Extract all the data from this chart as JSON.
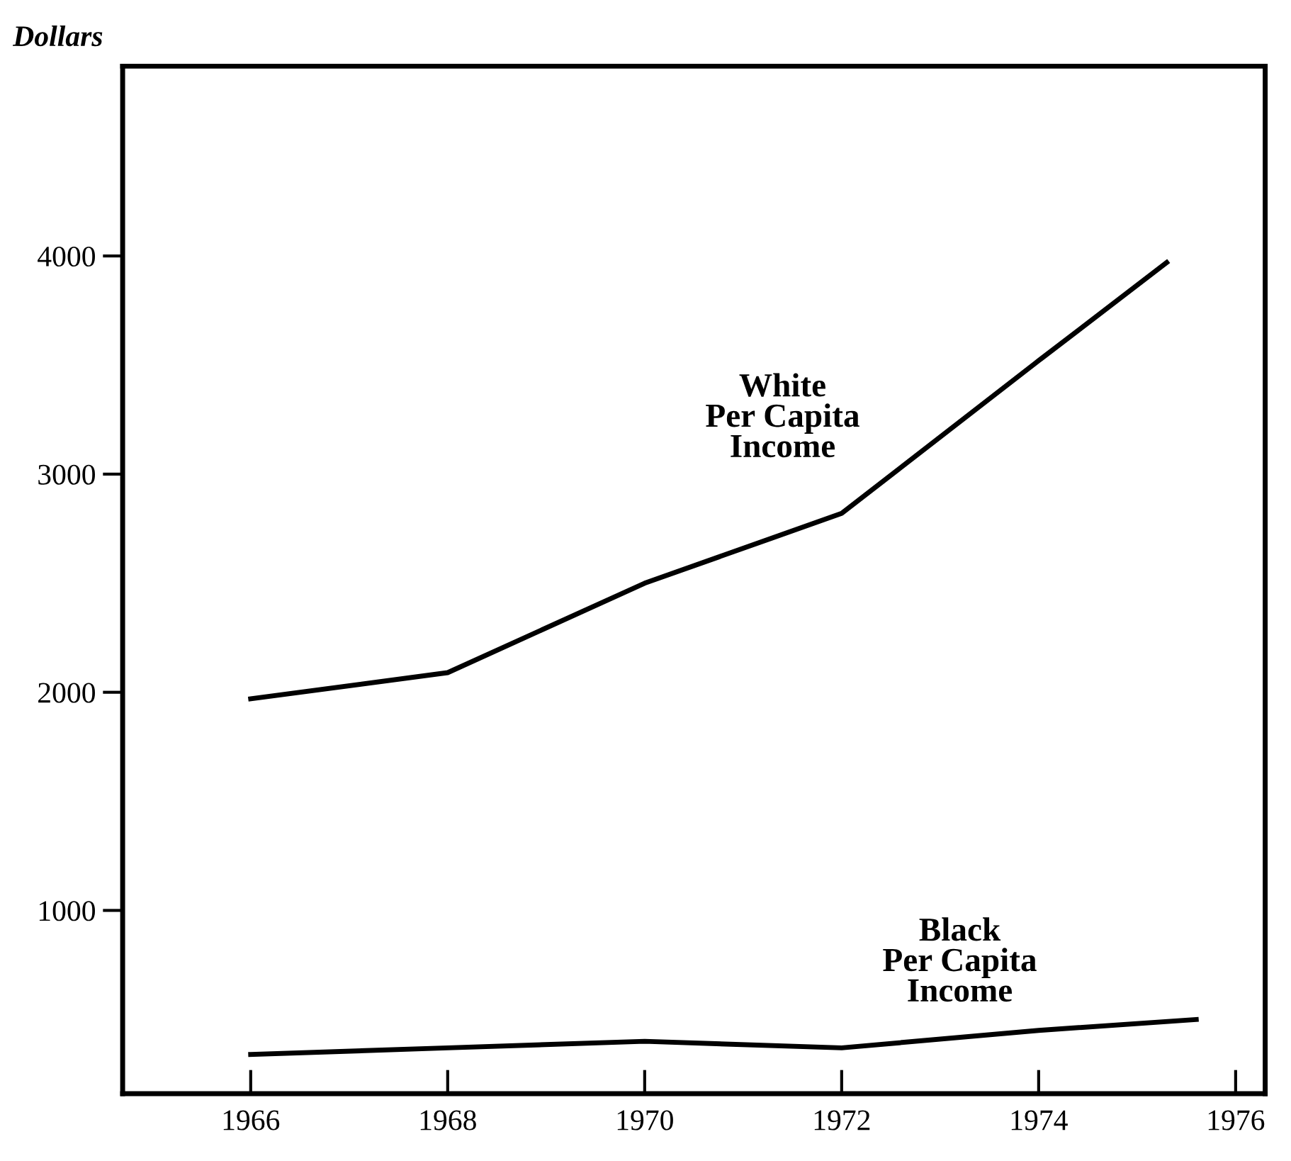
{
  "chart_data": {
    "type": "line",
    "ylabel": "Dollars",
    "x": [
      1966,
      1968,
      1970,
      1972,
      1974,
      1975.3
    ],
    "series": [
      {
        "name": "White\nPer Capita\nIncome",
        "color": "#000000",
        "values": [
          1970,
          2090,
          2500,
          2820,
          3520,
          3970
        ]
      },
      {
        "name": "Black\nPer Capita\nIncome",
        "color": "#000000",
        "x": [
          1966,
          1968,
          1970,
          1972,
          1974,
          1975.6
        ],
        "values": [
          340,
          370,
          400,
          370,
          450,
          500
        ]
      }
    ],
    "xlim": [
      1964.7,
      1976.3
    ],
    "xticks": [
      1966,
      1968,
      1970,
      1972,
      1974,
      1976
    ],
    "ylim": [
      160,
      4870
    ],
    "yticks": [
      1000,
      2000,
      3000,
      4000
    ],
    "grid": false,
    "legend": false,
    "marker": "none",
    "line_style": "solid"
  }
}
